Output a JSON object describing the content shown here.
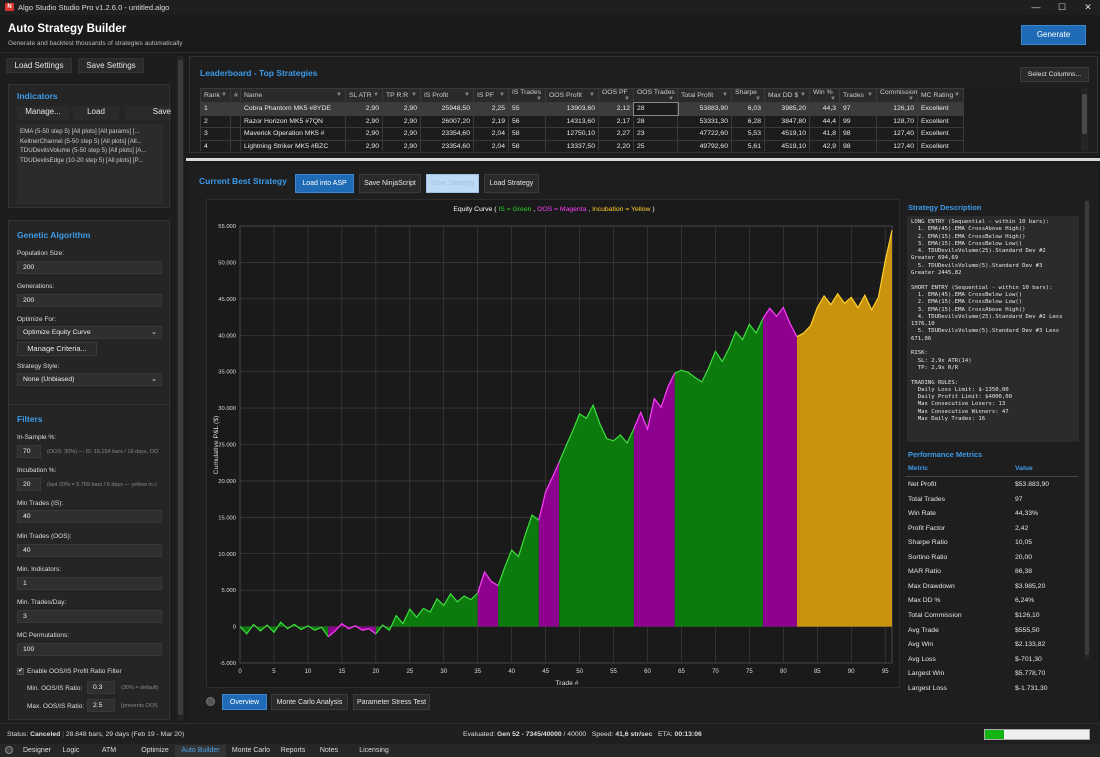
{
  "window": {
    "title": "Algo Studio Studio Pro v1.2.6.0 - untitled.algo",
    "logo_letter": "N",
    "minimize": "—",
    "maximize": "☐",
    "close": "✕"
  },
  "header": {
    "title": "Auto Strategy Builder",
    "subtitle": "Generate and backtest thousands of strategies automatically",
    "generate_label": "Generate"
  },
  "left": {
    "load_settings": "Load Settings",
    "save_settings": "Save Settings",
    "indicators": {
      "title": "Indicators",
      "manage": "Manage...",
      "load": "Load",
      "save": "Save",
      "items": [
        "EMA (5-50 step 5) [All plots] [All params] [...",
        "KeltnerChannel (5-50 step 5) [All plots] [All...",
        "TDUDevilsVolume (5-50 step 5) [All plots] [A...",
        "TDUDevilsEdge (10-20 step 5) [All plots] [P..."
      ]
    },
    "genetic": {
      "title": "Genetic Algorithm",
      "population_label": "Population Size:",
      "population": "200",
      "generations_label": "Generations:",
      "generations": "200",
      "optimize_label": "Optimize For:",
      "optimize": "Optimize Equity Curve",
      "manage_criteria": "Manage Criteria...",
      "style_label": "Strategy Style:",
      "style": "None (Unbiased)"
    },
    "filters": {
      "title": "Filters",
      "insample_label": "In-Sample %:",
      "insample": "70",
      "insample_hint": "(OOS: 30%) — IS: 16.154 bars / 16 days, OO",
      "incubation_label": "Incubation %:",
      "incubation": "20",
      "incubation_hint": "(last 20% = 5.769 bars / 6 days — yellow in c",
      "min_trades_is_label": "Min Trades (IS):",
      "min_trades_is": "40",
      "min_trades_oos_label": "Min Trades (OOS):",
      "min_trades_oos": "40",
      "min_ind_label": "Min. Indicators:",
      "min_ind": "1",
      "min_tpd_label": "Min. Trades/Day:",
      "min_tpd": "3",
      "mc_label": "MC Permutations:",
      "mc": "100",
      "oos_filter_label": "Enable OOS/IS Profit Ratio Filter",
      "check_mark": "✔",
      "min_ratio_label": "Min. OOS/IS Ratio:",
      "min_ratio": "0.3",
      "min_ratio_hint": "(30% = default)",
      "max_ratio_label": "Max. OOS/IS Ratio:",
      "max_ratio": "2.5",
      "max_ratio_hint": "(prevents OOS"
    }
  },
  "leaderboard": {
    "title": "Leaderboard - Top Strategies",
    "select_columns": "Select Columns...",
    "columns": [
      "Rank",
      "#",
      "Name",
      "SL ATR",
      "TP R:R",
      "IS Profit",
      "IS PF",
      "IS Trades",
      "OOS Profit",
      "OOS PF",
      "OOS Trades",
      "Total Profit",
      "Sharpe",
      "Max DD $",
      "Win %",
      "Trades",
      "Commission",
      "MC Rating"
    ],
    "rows": [
      [
        "1",
        "",
        "Cobra Phantom MK5 #8YDE",
        "2,90",
        "2,90",
        "25948,50",
        "2,25",
        "55",
        "13903,60",
        "2,12",
        "28",
        "53883,90",
        "6,03",
        "3985,20",
        "44,3",
        "97",
        "126,10",
        "Excellent"
      ],
      [
        "2",
        "",
        "Razor Horizon MK5 #7QN",
        "2,90",
        "2,90",
        "26007,20",
        "2,19",
        "56",
        "14313,60",
        "2,17",
        "28",
        "53331,30",
        "6,28",
        "3847,80",
        "44,4",
        "99",
        "128,70",
        "Excellent"
      ],
      [
        "3",
        "",
        "Maverick Operation MK5 #",
        "2,90",
        "2,90",
        "23354,60",
        "2,04",
        "58",
        "12750,10",
        "2,27",
        "23",
        "47722,60",
        "5,53",
        "4519,10",
        "41,8",
        "98",
        "127,40",
        "Excellent"
      ],
      [
        "4",
        "",
        "Lightning Striker MK5 #BZC",
        "2,90",
        "2,90",
        "23354,60",
        "2,04",
        "58",
        "13337,50",
        "2,20",
        "25",
        "49792,60",
        "5,61",
        "4519,10",
        "42,9",
        "98",
        "127,40",
        "Excellent"
      ]
    ]
  },
  "current": {
    "title": "Current Best Strategy",
    "load_asp": "Load into ASP",
    "save_ninja": "Save NinjaScript",
    "save_strategy": "Save Strategy",
    "load_strategy": "Load Strategy",
    "chart_title_prefix": "Equity Curve ( ",
    "chart_title_is": "IS = Green",
    "chart_title_oos": "OOS = Magenta",
    "chart_title_inc": "Incubation = Yellow",
    "chart_title_suffix": " )",
    "chart_title_sep": " , "
  },
  "chart_data": {
    "type": "area",
    "title": "Equity Curve ( IS = Green , OOS = Magenta , Incubation = Yellow )",
    "xlabel": "Trade #",
    "ylabel": "Cumulative P&L ($)",
    "xlim": [
      0,
      96
    ],
    "ylim": [
      -5000,
      55000
    ],
    "xticks": [
      0,
      5,
      10,
      15,
      20,
      25,
      30,
      35,
      40,
      45,
      50,
      55,
      60,
      65,
      70,
      75,
      80,
      85,
      90,
      95
    ],
    "yticks": [
      -5000,
      0,
      5000,
      10000,
      15000,
      20000,
      25000,
      30000,
      35000,
      40000,
      45000,
      50000,
      55000
    ],
    "ytick_labels": [
      "-5.000",
      "0",
      "5.000",
      "10.000",
      "15.000",
      "20.000",
      "25.000",
      "30.000",
      "35.000",
      "40.000",
      "45.000",
      "50.000",
      "55.000"
    ],
    "grid": true,
    "segment_colors": {
      "IS": "#0d7a0d",
      "OOS": "#8e008e",
      "Incubation": "#c9930d"
    },
    "line_colors": {
      "IS": "#3de03d",
      "OOS": "#ff3dff",
      "Incubation": "#ffd02a"
    },
    "segments": [
      {
        "phase": "IS",
        "x": [
          0,
          1,
          2,
          3,
          4,
          5,
          6,
          7,
          8,
          9,
          10,
          11,
          12,
          13
        ],
        "y": [
          0,
          -1000,
          300,
          -600,
          200,
          -800,
          600,
          -300,
          300,
          -400,
          100,
          -500,
          -100,
          -1400
        ]
      },
      {
        "phase": "OOS",
        "x": [
          13,
          14,
          15,
          16,
          17,
          18,
          19,
          20
        ],
        "y": [
          -1400,
          -600,
          400,
          -300,
          100,
          -500,
          -300,
          -1000
        ]
      },
      {
        "phase": "IS",
        "x": [
          20,
          21,
          22,
          23,
          24,
          25,
          26,
          27,
          28,
          29,
          30,
          31,
          32,
          33,
          34,
          35
        ],
        "y": [
          -1000,
          200,
          -500,
          1500,
          400,
          2400,
          1300,
          2500,
          2000,
          3800,
          2900,
          4500,
          3400,
          4200,
          3700,
          4600
        ]
      },
      {
        "phase": "OOS",
        "x": [
          35,
          36,
          37,
          38
        ],
        "y": [
          4600,
          7500,
          6200,
          5600
        ]
      },
      {
        "phase": "IS",
        "x": [
          38,
          39,
          40,
          41,
          42,
          43,
          44
        ],
        "y": [
          5600,
          8200,
          10500,
          9600,
          12600,
          15300,
          14600
        ]
      },
      {
        "phase": "OOS",
        "x": [
          44,
          45,
          46,
          47
        ],
        "y": [
          14600,
          18500,
          20500,
          22600
        ]
      },
      {
        "phase": "IS",
        "x": [
          47,
          48,
          49,
          50,
          51,
          52,
          53,
          54,
          55,
          56,
          57,
          58
        ],
        "y": [
          22600,
          24800,
          26900,
          29200,
          28600,
          30400,
          27800,
          25800,
          25500,
          26300,
          25200,
          27200
        ]
      },
      {
        "phase": "OOS",
        "x": [
          58,
          59,
          60,
          61,
          62,
          63,
          64
        ],
        "y": [
          27200,
          29400,
          27100,
          31300,
          30100,
          32900,
          34800
        ]
      },
      {
        "phase": "IS",
        "x": [
          64,
          65,
          66,
          67,
          68,
          69,
          70,
          71,
          72,
          73,
          74,
          75,
          76,
          77
        ],
        "y": [
          34800,
          35200,
          34900,
          34200,
          33600,
          35500,
          37800,
          36400,
          38200,
          40500,
          39400,
          41500,
          40300,
          42300
        ]
      },
      {
        "phase": "OOS",
        "x": [
          77,
          78,
          79,
          80,
          81,
          82
        ],
        "y": [
          42300,
          43700,
          42600,
          43800,
          41600,
          39800
        ]
      },
      {
        "phase": "Incubation",
        "x": [
          82,
          83,
          84,
          85,
          86,
          87,
          88,
          89,
          90,
          91,
          92,
          93,
          94,
          95,
          96
        ],
        "y": [
          39800,
          40300,
          41300,
          43800,
          45400,
          44200,
          45700,
          44400,
          45200,
          43800,
          45500,
          43500,
          45200,
          50200,
          54400
        ]
      }
    ]
  },
  "description": {
    "title": "Strategy Description",
    "text": "LONG ENTRY (Sequential - within 10 bars):\n  1. EMA(45).EMA CrossAbove High()\n  2. EMA(15).EMA CrossBelow High()\n  3. EMA(15).EMA CrossBelow Low()\n  4. TDUDevilsVolume(25).Standard Dev #2\nGreater 694,69\n  5. TDUDevilsVolume(5).Standard Dev #3\nGreater 2445,82\n\nSHORT ENTRY (Sequential - within 10 bars):\n  1. EMA(45).EMA CrossBelow Low()\n  2. EMA(15).EMA CrossBelow Low()\n  3. EMA(15).EMA CrossAbove High()\n  4. TDUDevilsVolume(25).Standard Dev #2 Less\n1376,10\n  5. TDUDevilsVolume(5).Standard Dev #3 Less\n671,06\n\nRISK:\n  SL: 2,9x ATR(14)\n  TP: 2,9x R/R\n\nTRADING RULES:\n  Daily Loss Limit: $-1350,00\n  Daily Profit Limit: $4000,00\n  Max Consecutive Losers: 13\n  Max Consecutive Winners: 47\n  Max Daily Trades: 16"
  },
  "metrics": {
    "title": "Performance Metrics",
    "col_metric": "Metric",
    "col_value": "Value",
    "rows": [
      [
        "Net Profit",
        "$53.883,90"
      ],
      [
        "Total Trades",
        "97"
      ],
      [
        "Win Rate",
        "44,33%"
      ],
      [
        "Profit Factor",
        "2,42"
      ],
      [
        "Sharpe Ratio",
        "10,05"
      ],
      [
        "Sortino Ratio",
        "20,00"
      ],
      [
        "MAR Ratio",
        "86,38"
      ],
      [
        "Max Drawdown",
        "$3.985,20"
      ],
      [
        "Max DD %",
        "6,24%"
      ],
      [
        "Total Commission",
        "$126,10"
      ],
      [
        "Avg Trade",
        "$555,50"
      ],
      [
        "Avg Win",
        "$2.133,82"
      ],
      [
        "Avg Loss",
        "$-701,30"
      ],
      [
        "Largest Win",
        "$5.778,70"
      ],
      [
        "Largest Loss",
        "$-1.731,30"
      ]
    ]
  },
  "analysis_tabs": [
    "Overview",
    "Monte Carlo Analysis",
    "Parameter Stress Test"
  ],
  "status": {
    "status_label": "Status:",
    "status_value": "Canceled",
    "data_info": "28.848 bars, 29 days (Feb 19 - Mar 20)",
    "evaluated_label": "Evaluated:",
    "evaluated_value": "Gen 52 - 7345/40000",
    "evaluated_total": "/ 40000",
    "speed_label": "Speed:",
    "speed_value": "41,6 str/sec",
    "eta_label": "ETA:",
    "eta_value": "00:13:06",
    "progress": 0.18
  },
  "bottom_tabs": [
    "Designer",
    "Logic",
    "ATM",
    "Optimize",
    "Auto Builder",
    "Monte Carlo",
    "Reports",
    "Notes",
    "Licensing"
  ]
}
